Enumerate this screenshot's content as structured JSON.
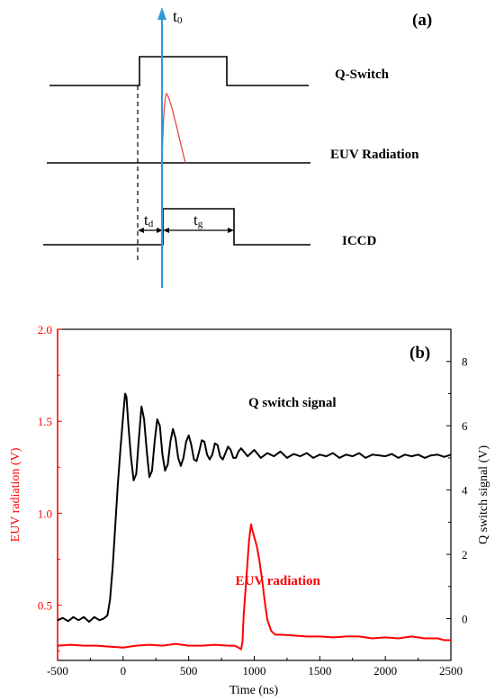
{
  "timing_diagram": {
    "panel_label": "(a)",
    "t0_label": "t",
    "t0_sub": "0",
    "td_label": "t",
    "td_sub": "d",
    "tg_label": "t",
    "tg_sub": "g",
    "rows": [
      {
        "label": "Q-Switch"
      },
      {
        "label": "EUV Radiation"
      },
      {
        "label": "ICCD"
      }
    ],
    "colors": {
      "axis_arrow": "#2e9ad6",
      "pulse": "#e8484a",
      "line": "#000000"
    }
  },
  "chart_data": {
    "type": "line",
    "panel_label": "(b)",
    "xlabel": "Time (ns)",
    "ylabel_left": "EUV radiation (V)",
    "ylabel_right": "Q switch signal (V)",
    "xlim": [
      -500,
      2500
    ],
    "ylim_left": [
      0.2,
      2.0
    ],
    "ylim_right": [
      -1.3,
      9.0
    ],
    "x_ticks": [
      "-500",
      "0",
      "500",
      "1000",
      "1500",
      "2000",
      "2500"
    ],
    "y_ticks_left": [
      "0.5",
      "1.0",
      "1.5",
      "2.0"
    ],
    "y_ticks_right": [
      "0",
      "2",
      "4",
      "6",
      "8"
    ],
    "series": [
      {
        "name": "Q switch signal",
        "axis": "right",
        "color": "#000000",
        "x": [
          -500,
          -460,
          -420,
          -380,
          -340,
          -300,
          -260,
          -220,
          -180,
          -150,
          -120,
          -100,
          -80,
          -60,
          -40,
          -20,
          0,
          15,
          25,
          40,
          60,
          80,
          100,
          120,
          140,
          160,
          180,
          200,
          220,
          240,
          260,
          280,
          300,
          320,
          340,
          360,
          380,
          400,
          420,
          440,
          460,
          480,
          500,
          520,
          540,
          560,
          580,
          600,
          620,
          640,
          660,
          680,
          700,
          720,
          740,
          760,
          780,
          800,
          820,
          840,
          860,
          880,
          900,
          950,
          1000,
          1050,
          1100,
          1150,
          1200,
          1250,
          1300,
          1350,
          1400,
          1450,
          1500,
          1550,
          1600,
          1650,
          1700,
          1750,
          1800,
          1850,
          1900,
          1950,
          2000,
          2050,
          2100,
          2150,
          2200,
          2250,
          2300,
          2350,
          2400,
          2450,
          2500
        ],
        "y": [
          -0.05,
          0.02,
          -0.08,
          0.05,
          -0.05,
          0.05,
          -0.1,
          0.05,
          -0.05,
          0.0,
          0.1,
          0.6,
          1.6,
          2.9,
          4.2,
          5.3,
          6.3,
          7.0,
          6.9,
          6.0,
          5.0,
          4.3,
          4.5,
          5.6,
          6.6,
          6.2,
          5.2,
          4.4,
          4.6,
          5.5,
          6.2,
          6.0,
          5.1,
          4.6,
          4.8,
          5.5,
          5.9,
          5.6,
          5.0,
          4.75,
          5.0,
          5.5,
          5.7,
          5.4,
          4.95,
          4.9,
          5.2,
          5.55,
          5.5,
          5.1,
          4.95,
          5.1,
          5.45,
          5.4,
          5.05,
          4.95,
          5.15,
          5.35,
          5.25,
          5.0,
          5.0,
          5.2,
          5.3,
          5.05,
          5.25,
          5.0,
          5.15,
          5.05,
          5.2,
          5.0,
          5.12,
          5.05,
          5.15,
          5.0,
          5.1,
          5.05,
          5.15,
          5.0,
          5.1,
          5.05,
          5.15,
          5.0,
          5.1,
          5.08,
          5.05,
          5.12,
          5.0,
          5.1,
          5.05,
          5.1,
          5.0,
          5.08,
          5.1,
          5.03,
          5.1
        ]
      },
      {
        "name": "EUV radiation",
        "axis": "left",
        "color": "#ff0000",
        "x": [
          -500,
          -400,
          -300,
          -200,
          -100,
          0,
          100,
          200,
          300,
          400,
          500,
          600,
          700,
          800,
          850,
          880,
          900,
          910,
          920,
          940,
          960,
          975,
          985,
          1000,
          1020,
          1040,
          1060,
          1080,
          1100,
          1130,
          1160,
          1200,
          1300,
          1400,
          1500,
          1600,
          1700,
          1800,
          1900,
          2000,
          2100,
          2200,
          2300,
          2400,
          2450,
          2500
        ],
        "y": [
          0.28,
          0.285,
          0.28,
          0.28,
          0.275,
          0.27,
          0.28,
          0.285,
          0.28,
          0.29,
          0.28,
          0.28,
          0.285,
          0.28,
          0.28,
          0.27,
          0.26,
          0.3,
          0.45,
          0.65,
          0.85,
          0.94,
          0.91,
          0.87,
          0.82,
          0.74,
          0.64,
          0.52,
          0.42,
          0.36,
          0.34,
          0.34,
          0.335,
          0.33,
          0.33,
          0.325,
          0.33,
          0.33,
          0.32,
          0.325,
          0.32,
          0.33,
          0.32,
          0.32,
          0.31,
          0.31
        ]
      }
    ],
    "annotations": [
      {
        "text": "Q switch signal",
        "color": "#000000",
        "x": 1290,
        "y_left": 1.58
      },
      {
        "text": "EUV radiation",
        "color": "#ff0000",
        "x": 1180,
        "y_left": 0.61
      }
    ]
  }
}
